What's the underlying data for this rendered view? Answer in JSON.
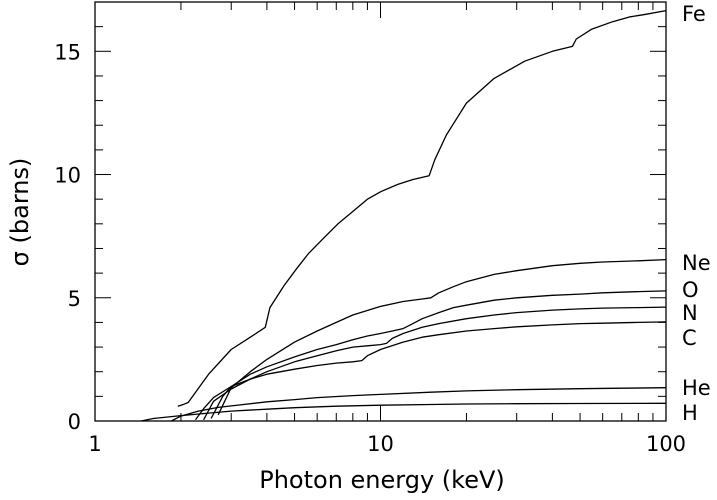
{
  "chart_data": {
    "type": "line",
    "title": "",
    "xlabel": "Photon energy (keV)",
    "ylabel": "σ (barns)",
    "xscale": "log",
    "xlim": [
      1,
      100
    ],
    "ylim": [
      0,
      17
    ],
    "x_ticks": [
      1,
      10,
      100
    ],
    "y_ticks": [
      0,
      5,
      10,
      15
    ],
    "grid": false,
    "legend": "right-edge labels",
    "series": [
      {
        "name": "Fe",
        "x": [
          1.95,
          2.05,
          2.12,
          2.5,
          3,
          3.5,
          3.95,
          4.1,
          4.6,
          5.1,
          5.6,
          6.3,
          7.1,
          8,
          9,
          10,
          11.5,
          13,
          14.8,
          15.5,
          17,
          20,
          25,
          32,
          40,
          47,
          48.5,
          55,
          65,
          75,
          85,
          100
        ],
        "y": [
          0.6,
          0.68,
          0.75,
          1.9,
          2.9,
          3.4,
          3.8,
          4.6,
          5.5,
          6.2,
          6.8,
          7.4,
          8.0,
          8.5,
          9.0,
          9.3,
          9.6,
          9.8,
          9.95,
          10.6,
          11.6,
          12.9,
          13.9,
          14.6,
          15.0,
          15.2,
          15.5,
          15.9,
          16.2,
          16.4,
          16.5,
          16.65
        ]
      },
      {
        "name": "Ne",
        "x": [
          2.7,
          3,
          3.5,
          4,
          5,
          6,
          7,
          8,
          10,
          12,
          14,
          15,
          16,
          18,
          20,
          25,
          30,
          40,
          50,
          60,
          80,
          100
        ],
        "y": [
          0.25,
          1.35,
          2.0,
          2.5,
          3.2,
          3.65,
          4.0,
          4.3,
          4.65,
          4.85,
          4.95,
          5.0,
          5.2,
          5.45,
          5.65,
          5.95,
          6.1,
          6.3,
          6.4,
          6.45,
          6.5,
          6.55
        ]
      },
      {
        "name": "O",
        "x": [
          2.55,
          2.8,
          3,
          3.5,
          4,
          5,
          6,
          7,
          8,
          9,
          10,
          11,
          12,
          13,
          14,
          16,
          18,
          20,
          25,
          30,
          40,
          50,
          60,
          80,
          100
        ],
        "y": [
          0.1,
          1.0,
          1.4,
          1.9,
          2.2,
          2.6,
          2.9,
          3.1,
          3.3,
          3.45,
          3.55,
          3.65,
          3.75,
          3.95,
          4.15,
          4.4,
          4.6,
          4.7,
          4.9,
          5.0,
          5.1,
          5.15,
          5.2,
          5.25,
          5.28
        ]
      },
      {
        "name": "N",
        "x": [
          2.4,
          2.6,
          3,
          3.5,
          4,
          5,
          6,
          7,
          8,
          9,
          10,
          10.5,
          11,
          12,
          14,
          16,
          20,
          25,
          30,
          40,
          50,
          60,
          80,
          100
        ],
        "y": [
          0.05,
          0.8,
          1.3,
          1.7,
          2.0,
          2.4,
          2.65,
          2.85,
          3.0,
          3.05,
          3.1,
          3.15,
          3.35,
          3.55,
          3.8,
          3.95,
          4.15,
          4.3,
          4.4,
          4.5,
          4.55,
          4.58,
          4.6,
          4.62
        ]
      },
      {
        "name": "C",
        "x": [
          2.25,
          2.4,
          2.6,
          3,
          3.5,
          4,
          5,
          6,
          7,
          8,
          8.6,
          9,
          10,
          12,
          14,
          16,
          20,
          25,
          30,
          40,
          50,
          60,
          80,
          100
        ],
        "y": [
          0.05,
          0.5,
          0.95,
          1.4,
          1.7,
          1.9,
          2.1,
          2.25,
          2.35,
          2.4,
          2.45,
          2.65,
          2.9,
          3.2,
          3.4,
          3.5,
          3.65,
          3.75,
          3.82,
          3.9,
          3.95,
          3.97,
          4.0,
          4.02
        ]
      },
      {
        "name": "He",
        "x": [
          1.85,
          2,
          2.3,
          2.7,
          3.2,
          4,
          5,
          6,
          8,
          10,
          15,
          20,
          30,
          50,
          70,
          100
        ],
        "y": [
          0.0,
          0.2,
          0.4,
          0.55,
          0.65,
          0.78,
          0.87,
          0.95,
          1.03,
          1.08,
          1.17,
          1.22,
          1.27,
          1.31,
          1.33,
          1.35
        ]
      },
      {
        "name": "H",
        "x": [
          1.45,
          1.6,
          2,
          2.5,
          3,
          4,
          5,
          7,
          10,
          15,
          20,
          30,
          50,
          100
        ],
        "y": [
          0.0,
          0.1,
          0.22,
          0.32,
          0.4,
          0.48,
          0.54,
          0.6,
          0.64,
          0.67,
          0.69,
          0.7,
          0.71,
          0.72
        ]
      }
    ]
  }
}
